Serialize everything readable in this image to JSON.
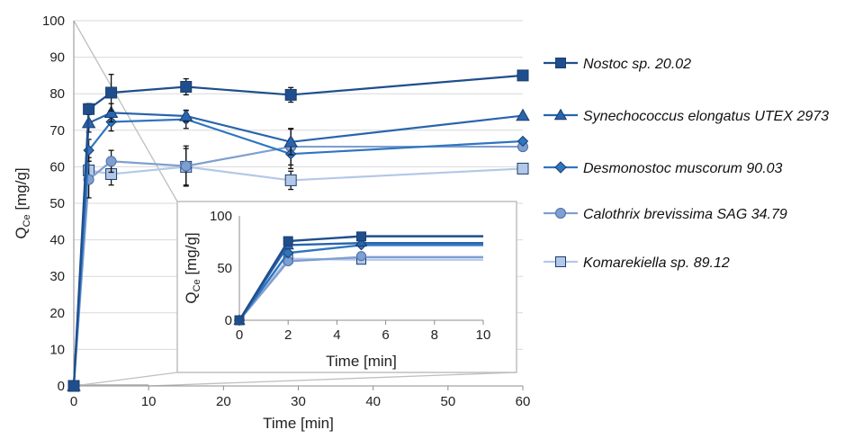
{
  "colors": {
    "nostoc": "#1f4e8c",
    "synechococcus": "#2a64ad",
    "desmonostoc": "#2f75c0",
    "calothrix": "#7f9fd0",
    "komarekiella": "#b3c8e8",
    "grid": "#d9d9d9",
    "inset_border": "#bfbfbf"
  },
  "chart_data": [
    {
      "type": "line",
      "title": "",
      "xlabel": "Time [min]",
      "ylabel": "Q",
      "ylabel_sub": "Ce",
      "ylabel_unit": " [mg/g]",
      "xlim": [
        0,
        60
      ],
      "ylim": [
        0,
        100
      ],
      "xticks": [
        0,
        10,
        20,
        30,
        40,
        50,
        60
      ],
      "yticks": [
        0,
        10,
        20,
        30,
        40,
        50,
        60,
        70,
        80,
        90,
        100
      ],
      "grid": "horizontal",
      "legend": "right",
      "x": [
        0,
        2,
        5,
        15,
        29,
        60
      ],
      "series": [
        {
          "name": "Nostoc sp. 20.02",
          "marker": "square",
          "color": "#1f4e8c",
          "values": [
            0,
            75.8,
            80.3,
            81.9,
            79.7,
            85.0
          ],
          "err": [
            0,
            1.5,
            5.0,
            2.2,
            2.0,
            0
          ]
        },
        {
          "name": "Synechococcus elongatus UTEX 2973",
          "marker": "triangle",
          "color": "#2a64ad",
          "values": [
            0,
            72.0,
            74.8,
            73.9,
            66.8,
            74.0
          ],
          "err": [
            0,
            2.5,
            2.5,
            1.5,
            3.5,
            0
          ]
        },
        {
          "name": "Desmonostoc muscorum 90.03",
          "marker": "diamond",
          "color": "#2f75c0",
          "values": [
            0,
            64.5,
            72.3,
            73.0,
            63.5,
            67.0
          ],
          "err": [
            0,
            3.0,
            2.5,
            2.5,
            4.0,
            0
          ]
        },
        {
          "name": "Calothrix brevissima SAG 34.79",
          "marker": "circle",
          "color": "#7f9fd0",
          "values": [
            0,
            56.5,
            61.5,
            60.2,
            65.5,
            65.5
          ],
          "err": [
            0,
            5.0,
            3.0,
            5.5,
            5.0,
            0
          ]
        },
        {
          "name": "Komarekiella sp. 89.12",
          "marker": "square",
          "color": "#b3c8e8",
          "values": [
            0,
            59.0,
            58.0,
            60.0,
            56.3,
            59.5
          ],
          "err": [
            0,
            3.5,
            3.0,
            5.0,
            2.5,
            0
          ]
        }
      ]
    },
    {
      "type": "line",
      "title": "",
      "xlabel": "Time [min]",
      "ylabel": "Q",
      "ylabel_sub": "Ce",
      "ylabel_unit": " [mg/g]",
      "xlim": [
        0,
        10
      ],
      "ylim": [
        0,
        100
      ],
      "xticks": [
        0,
        2,
        4,
        6,
        8,
        10
      ],
      "yticks": [
        0,
        50,
        100
      ],
      "x": [
        0,
        2,
        5
      ],
      "fits": [
        {
          "series": 0,
          "plateau": 80.5,
          "reach": 5
        },
        {
          "series": 1,
          "plateau": 74.0,
          "reach": 5
        },
        {
          "series": 2,
          "plateau": 72.0,
          "reach": 5
        },
        {
          "series": 3,
          "plateau": 60.5,
          "reach": 5
        },
        {
          "series": 4,
          "plateau": 58.0,
          "reach": 5
        }
      ],
      "series": [
        {
          "values": [
            0,
            75.8,
            80.3
          ]
        },
        {
          "values": [
            0,
            72.0,
            74.8
          ]
        },
        {
          "values": [
            0,
            64.5,
            72.3
          ]
        },
        {
          "values": [
            0,
            56.5,
            61.5
          ]
        },
        {
          "values": [
            0,
            59.0,
            58.0
          ]
        }
      ]
    }
  ]
}
